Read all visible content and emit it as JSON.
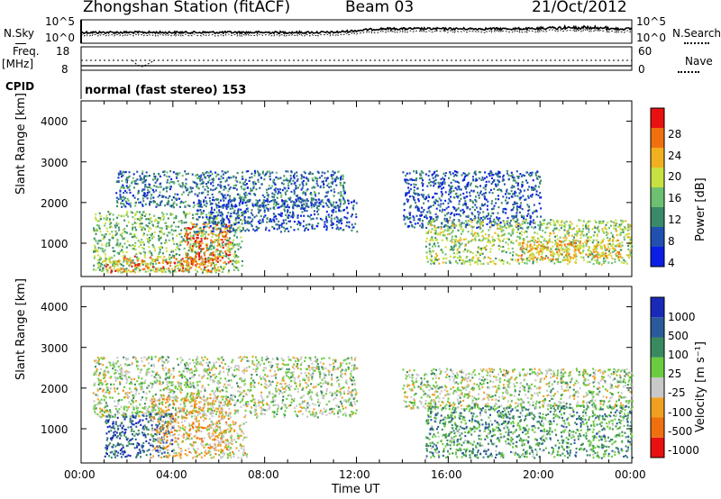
{
  "header": {
    "station": "Zhongshan Station (fitACF)",
    "beam": "Beam 03",
    "date": "21/Oct/2012"
  },
  "strip": {
    "nsky_label": "N.Sky",
    "nsky_ticks": [
      "10^5",
      "10^0"
    ],
    "nsearch_label": "N.Search",
    "nsearch_ticks": [
      "10^5",
      "10^0"
    ],
    "freq_label": "Freq.",
    "freq_unit": "[MHz]",
    "freq_ticks": [
      "18",
      "8"
    ],
    "nave_label": "Nave",
    "nave_ticks": [
      "60",
      "0"
    ],
    "cpid_label": "CPID",
    "cpid_text": "normal (fast stereo) 153"
  },
  "x_axis": {
    "label": "Time UT",
    "ticks": [
      "00:00",
      "04:00",
      "08:00",
      "12:00",
      "16:00",
      "20:00",
      "00:00"
    ]
  },
  "panels": {
    "power": {
      "ylabel": "Slant Range [km]",
      "yticks": [
        "4000",
        "3000",
        "2000",
        "1000"
      ],
      "cbar_label": "Power [dB]",
      "cbar_ticks": [
        "28",
        "24",
        "20",
        "16",
        "12",
        "8",
        "4"
      ]
    },
    "velocity": {
      "ylabel": "Slant Range [km]",
      "yticks": [
        "4000",
        "3000",
        "2000",
        "1000"
      ],
      "cbar_label": "Velocity [m s⁻¹]",
      "cbar_ticks": [
        "1000",
        "500",
        "100",
        "25",
        "-25",
        "-100",
        "-500",
        "-1000"
      ]
    }
  },
  "colors": {
    "power_scale": [
      "#0a1ee6",
      "#2050b0",
      "#3a8a6a",
      "#6cc070",
      "#c8e040",
      "#f0b020",
      "#f07010",
      "#e81010"
    ],
    "velocity_scale": [
      "#1a2ab8",
      "#2a5a9a",
      "#3a8a60",
      "#6ccc40",
      "#c8c8c8",
      "#f0a020",
      "#f07010",
      "#e81010"
    ]
  },
  "chart_data": [
    {
      "type": "heatmap",
      "title": "Power",
      "xlabel": "Time UT",
      "ylabel": "Slant Range [km]",
      "x_range_hours": [
        0,
        24
      ],
      "ylim": [
        180,
        4500
      ],
      "color_range": [
        0,
        32
      ],
      "color_unit": "dB",
      "regions": [
        {
          "t": [
            0.5,
            7.0
          ],
          "range_km": [
            300,
            1800
          ],
          "level_db": 14
        },
        {
          "t": [
            1.0,
            6.0
          ],
          "range_km": [
            300,
            700
          ],
          "level_db": 24
        },
        {
          "t": [
            4.5,
            6.5
          ],
          "range_km": [
            500,
            1500
          ],
          "level_db": 26
        },
        {
          "t": [
            1.5,
            11.5
          ],
          "range_km": [
            1900,
            2800
          ],
          "level_db": 8
        },
        {
          "t": [
            5.0,
            12.0
          ],
          "range_km": [
            1300,
            2100
          ],
          "level_db": 6
        },
        {
          "t": [
            14.0,
            20.0
          ],
          "range_km": [
            1400,
            2800
          ],
          "level_db": 6
        },
        {
          "t": [
            15.0,
            24.0
          ],
          "range_km": [
            500,
            1600
          ],
          "level_db": 16
        },
        {
          "t": [
            19.0,
            23.5
          ],
          "range_km": [
            600,
            1100
          ],
          "level_db": 22
        }
      ]
    },
    {
      "type": "heatmap",
      "title": "Velocity",
      "xlabel": "Time UT",
      "ylabel": "Slant Range [km]",
      "x_range_hours": [
        0,
        24
      ],
      "ylim": [
        180,
        4500
      ],
      "color_range": [
        -1000,
        1000
      ],
      "color_unit": "m s-1",
      "regions": [
        {
          "t": [
            0.5,
            12.0
          ],
          "range_km": [
            1300,
            2800
          ],
          "level_ms": 0
        },
        {
          "t": [
            1.0,
            4.0
          ],
          "range_km": [
            300,
            1400
          ],
          "level_ms": 600
        },
        {
          "t": [
            3.0,
            6.5
          ],
          "range_km": [
            300,
            1800
          ],
          "level_ms": -300
        },
        {
          "t": [
            5.5,
            7.2
          ],
          "range_km": [
            300,
            1200
          ],
          "level_ms": -200
        },
        {
          "t": [
            14.0,
            24.0
          ],
          "range_km": [
            1500,
            2500
          ],
          "level_ms": 0
        },
        {
          "t": [
            15.0,
            24.0
          ],
          "range_km": [
            300,
            1600
          ],
          "level_ms": 300
        }
      ]
    }
  ]
}
